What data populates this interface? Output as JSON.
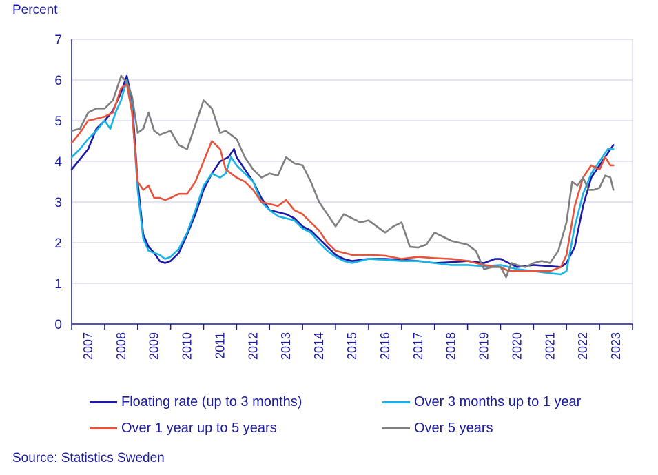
{
  "chart_data": {
    "type": "line",
    "ylabel": "Percent",
    "source": "Source: Statistics Sweden",
    "ylim": [
      0,
      7
    ],
    "yticks": [
      "0",
      "1",
      "2",
      "3",
      "4",
      "5",
      "6",
      "7"
    ],
    "xlim": [
      2007,
      2024
    ],
    "xticks": [
      "2007",
      "2008",
      "2009",
      "2010",
      "2011",
      "2012",
      "2013",
      "2014",
      "2015",
      "2016",
      "2017",
      "2018",
      "2019",
      "2020",
      "2021",
      "2022",
      "2023"
    ],
    "grid": "horizontal",
    "legend_position": "bottom",
    "series": [
      {
        "name": "Floating rate (up to 3 months)",
        "color": "#1d1aa8",
        "points": [
          [
            2007.0,
            3.8
          ],
          [
            2007.25,
            4.05
          ],
          [
            2007.5,
            4.3
          ],
          [
            2007.75,
            4.8
          ],
          [
            2008.0,
            5.0
          ],
          [
            2008.25,
            5.25
          ],
          [
            2008.5,
            5.7
          ],
          [
            2008.67,
            6.1
          ],
          [
            2008.83,
            5.5
          ],
          [
            2009.0,
            3.5
          ],
          [
            2009.17,
            2.2
          ],
          [
            2009.33,
            1.9
          ],
          [
            2009.5,
            1.75
          ],
          [
            2009.67,
            1.55
          ],
          [
            2009.83,
            1.5
          ],
          [
            2010.0,
            1.55
          ],
          [
            2010.25,
            1.75
          ],
          [
            2010.5,
            2.2
          ],
          [
            2010.75,
            2.7
          ],
          [
            2011.0,
            3.3
          ],
          [
            2011.25,
            3.7
          ],
          [
            2011.5,
            4.0
          ],
          [
            2011.75,
            4.1
          ],
          [
            2011.92,
            4.3
          ],
          [
            2012.0,
            4.1
          ],
          [
            2012.25,
            3.8
          ],
          [
            2012.5,
            3.5
          ],
          [
            2012.75,
            3.1
          ],
          [
            2013.0,
            2.8
          ],
          [
            2013.25,
            2.75
          ],
          [
            2013.5,
            2.7
          ],
          [
            2013.75,
            2.6
          ],
          [
            2014.0,
            2.4
          ],
          [
            2014.25,
            2.3
          ],
          [
            2014.5,
            2.1
          ],
          [
            2014.75,
            1.9
          ],
          [
            2015.0,
            1.7
          ],
          [
            2015.25,
            1.6
          ],
          [
            2015.5,
            1.55
          ],
          [
            2016.0,
            1.6
          ],
          [
            2016.5,
            1.6
          ],
          [
            2017.0,
            1.58
          ],
          [
            2017.5,
            1.55
          ],
          [
            2018.0,
            1.5
          ],
          [
            2018.5,
            1.52
          ],
          [
            2019.0,
            1.55
          ],
          [
            2019.5,
            1.5
          ],
          [
            2019.83,
            1.6
          ],
          [
            2020.0,
            1.6
          ],
          [
            2020.25,
            1.5
          ],
          [
            2020.5,
            1.4
          ],
          [
            2021.0,
            1.45
          ],
          [
            2021.5,
            1.42
          ],
          [
            2021.83,
            1.4
          ],
          [
            2022.0,
            1.5
          ],
          [
            2022.25,
            1.9
          ],
          [
            2022.5,
            2.9
          ],
          [
            2022.75,
            3.6
          ],
          [
            2023.0,
            3.9
          ],
          [
            2023.25,
            4.2
          ],
          [
            2023.42,
            4.4
          ]
        ]
      },
      {
        "name": "Over 3 months up to 1 year",
        "color": "#19b4e6",
        "points": [
          [
            2007.0,
            4.1
          ],
          [
            2007.25,
            4.3
          ],
          [
            2007.5,
            4.55
          ],
          [
            2007.75,
            4.75
          ],
          [
            2008.0,
            5.0
          ],
          [
            2008.17,
            4.8
          ],
          [
            2008.33,
            5.2
          ],
          [
            2008.5,
            5.5
          ],
          [
            2008.67,
            6.0
          ],
          [
            2008.83,
            5.3
          ],
          [
            2009.0,
            3.3
          ],
          [
            2009.17,
            2.1
          ],
          [
            2009.33,
            1.8
          ],
          [
            2009.5,
            1.75
          ],
          [
            2009.67,
            1.7
          ],
          [
            2009.83,
            1.6
          ],
          [
            2010.0,
            1.65
          ],
          [
            2010.25,
            1.85
          ],
          [
            2010.5,
            2.25
          ],
          [
            2010.75,
            2.8
          ],
          [
            2011.0,
            3.4
          ],
          [
            2011.25,
            3.7
          ],
          [
            2011.5,
            3.6
          ],
          [
            2011.67,
            3.7
          ],
          [
            2011.83,
            4.1
          ],
          [
            2012.0,
            3.9
          ],
          [
            2012.25,
            3.7
          ],
          [
            2012.5,
            3.5
          ],
          [
            2012.75,
            3.0
          ],
          [
            2013.0,
            2.8
          ],
          [
            2013.25,
            2.65
          ],
          [
            2013.5,
            2.6
          ],
          [
            2013.75,
            2.55
          ],
          [
            2014.0,
            2.35
          ],
          [
            2014.25,
            2.25
          ],
          [
            2014.5,
            2.0
          ],
          [
            2014.75,
            1.8
          ],
          [
            2015.0,
            1.65
          ],
          [
            2015.25,
            1.55
          ],
          [
            2015.5,
            1.5
          ],
          [
            2016.0,
            1.6
          ],
          [
            2016.5,
            1.58
          ],
          [
            2017.0,
            1.55
          ],
          [
            2017.5,
            1.55
          ],
          [
            2018.0,
            1.5
          ],
          [
            2018.5,
            1.45
          ],
          [
            2019.0,
            1.45
          ],
          [
            2019.5,
            1.42
          ],
          [
            2020.0,
            1.45
          ],
          [
            2020.5,
            1.35
          ],
          [
            2021.0,
            1.3
          ],
          [
            2021.5,
            1.25
          ],
          [
            2021.83,
            1.22
          ],
          [
            2022.0,
            1.3
          ],
          [
            2022.25,
            2.4
          ],
          [
            2022.5,
            3.2
          ],
          [
            2022.75,
            3.7
          ],
          [
            2023.0,
            4.0
          ],
          [
            2023.25,
            4.3
          ],
          [
            2023.42,
            4.3
          ]
        ]
      },
      {
        "name": "Over 1 year up to 5 years",
        "color": "#e8533b",
        "points": [
          [
            2007.0,
            4.45
          ],
          [
            2007.25,
            4.7
          ],
          [
            2007.5,
            5.0
          ],
          [
            2007.75,
            5.05
          ],
          [
            2008.0,
            5.1
          ],
          [
            2008.25,
            5.2
          ],
          [
            2008.5,
            5.8
          ],
          [
            2008.67,
            5.9
          ],
          [
            2008.83,
            5.2
          ],
          [
            2009.0,
            3.5
          ],
          [
            2009.17,
            3.3
          ],
          [
            2009.33,
            3.4
          ],
          [
            2009.5,
            3.1
          ],
          [
            2009.67,
            3.1
          ],
          [
            2009.83,
            3.05
          ],
          [
            2010.0,
            3.1
          ],
          [
            2010.25,
            3.2
          ],
          [
            2010.5,
            3.2
          ],
          [
            2010.75,
            3.5
          ],
          [
            2011.0,
            4.0
          ],
          [
            2011.25,
            4.5
          ],
          [
            2011.5,
            4.3
          ],
          [
            2011.67,
            3.8
          ],
          [
            2011.83,
            3.7
          ],
          [
            2012.0,
            3.6
          ],
          [
            2012.25,
            3.5
          ],
          [
            2012.5,
            3.3
          ],
          [
            2012.75,
            3.0
          ],
          [
            2013.0,
            2.95
          ],
          [
            2013.25,
            2.9
          ],
          [
            2013.5,
            3.05
          ],
          [
            2013.75,
            2.8
          ],
          [
            2014.0,
            2.7
          ],
          [
            2014.25,
            2.5
          ],
          [
            2014.5,
            2.3
          ],
          [
            2014.75,
            2.0
          ],
          [
            2015.0,
            1.8
          ],
          [
            2015.25,
            1.75
          ],
          [
            2015.5,
            1.7
          ],
          [
            2016.0,
            1.7
          ],
          [
            2016.5,
            1.68
          ],
          [
            2017.0,
            1.6
          ],
          [
            2017.5,
            1.65
          ],
          [
            2018.0,
            1.62
          ],
          [
            2018.5,
            1.6
          ],
          [
            2019.0,
            1.55
          ],
          [
            2019.5,
            1.45
          ],
          [
            2020.0,
            1.4
          ],
          [
            2020.25,
            1.3
          ],
          [
            2020.5,
            1.3
          ],
          [
            2021.0,
            1.3
          ],
          [
            2021.5,
            1.3
          ],
          [
            2021.83,
            1.4
          ],
          [
            2022.0,
            1.7
          ],
          [
            2022.25,
            2.9
          ],
          [
            2022.5,
            3.6
          ],
          [
            2022.75,
            3.9
          ],
          [
            2023.0,
            3.8
          ],
          [
            2023.17,
            4.1
          ],
          [
            2023.33,
            3.9
          ],
          [
            2023.42,
            3.9
          ]
        ]
      },
      {
        "name": "Over 5 years",
        "color": "#7f7f7f",
        "points": [
          [
            2007.0,
            4.75
          ],
          [
            2007.25,
            4.8
          ],
          [
            2007.5,
            5.2
          ],
          [
            2007.75,
            5.3
          ],
          [
            2008.0,
            5.3
          ],
          [
            2008.25,
            5.5
          ],
          [
            2008.5,
            6.1
          ],
          [
            2008.67,
            5.95
          ],
          [
            2008.83,
            5.6
          ],
          [
            2009.0,
            4.7
          ],
          [
            2009.17,
            4.8
          ],
          [
            2009.33,
            5.2
          ],
          [
            2009.5,
            4.75
          ],
          [
            2009.67,
            4.65
          ],
          [
            2009.83,
            4.7
          ],
          [
            2010.0,
            4.75
          ],
          [
            2010.25,
            4.4
          ],
          [
            2010.5,
            4.3
          ],
          [
            2010.75,
            4.9
          ],
          [
            2011.0,
            5.5
          ],
          [
            2011.25,
            5.3
          ],
          [
            2011.5,
            4.7
          ],
          [
            2011.67,
            4.75
          ],
          [
            2011.83,
            4.65
          ],
          [
            2012.0,
            4.55
          ],
          [
            2012.25,
            4.1
          ],
          [
            2012.5,
            3.8
          ],
          [
            2012.75,
            3.6
          ],
          [
            2013.0,
            3.7
          ],
          [
            2013.25,
            3.65
          ],
          [
            2013.5,
            4.1
          ],
          [
            2013.75,
            3.95
          ],
          [
            2014.0,
            3.9
          ],
          [
            2014.25,
            3.5
          ],
          [
            2014.5,
            3.0
          ],
          [
            2014.75,
            2.7
          ],
          [
            2015.0,
            2.4
          ],
          [
            2015.25,
            2.7
          ],
          [
            2015.5,
            2.6
          ],
          [
            2015.75,
            2.5
          ],
          [
            2016.0,
            2.55
          ],
          [
            2016.25,
            2.4
          ],
          [
            2016.5,
            2.25
          ],
          [
            2016.75,
            2.4
          ],
          [
            2017.0,
            2.5
          ],
          [
            2017.25,
            1.9
          ],
          [
            2017.5,
            1.88
          ],
          [
            2017.75,
            1.95
          ],
          [
            2018.0,
            2.25
          ],
          [
            2018.25,
            2.15
          ],
          [
            2018.5,
            2.05
          ],
          [
            2018.75,
            2.0
          ],
          [
            2019.0,
            1.95
          ],
          [
            2019.25,
            1.8
          ],
          [
            2019.5,
            1.35
          ],
          [
            2019.75,
            1.4
          ],
          [
            2020.0,
            1.4
          ],
          [
            2020.17,
            1.15
          ],
          [
            2020.33,
            1.5
          ],
          [
            2020.5,
            1.45
          ],
          [
            2020.75,
            1.4
          ],
          [
            2021.0,
            1.5
          ],
          [
            2021.25,
            1.55
          ],
          [
            2021.5,
            1.5
          ],
          [
            2021.75,
            1.8
          ],
          [
            2022.0,
            2.5
          ],
          [
            2022.17,
            3.5
          ],
          [
            2022.33,
            3.4
          ],
          [
            2022.5,
            3.6
          ],
          [
            2022.67,
            3.3
          ],
          [
            2022.83,
            3.3
          ],
          [
            2023.0,
            3.35
          ],
          [
            2023.17,
            3.65
          ],
          [
            2023.33,
            3.6
          ],
          [
            2023.42,
            3.3
          ]
        ]
      }
    ]
  }
}
